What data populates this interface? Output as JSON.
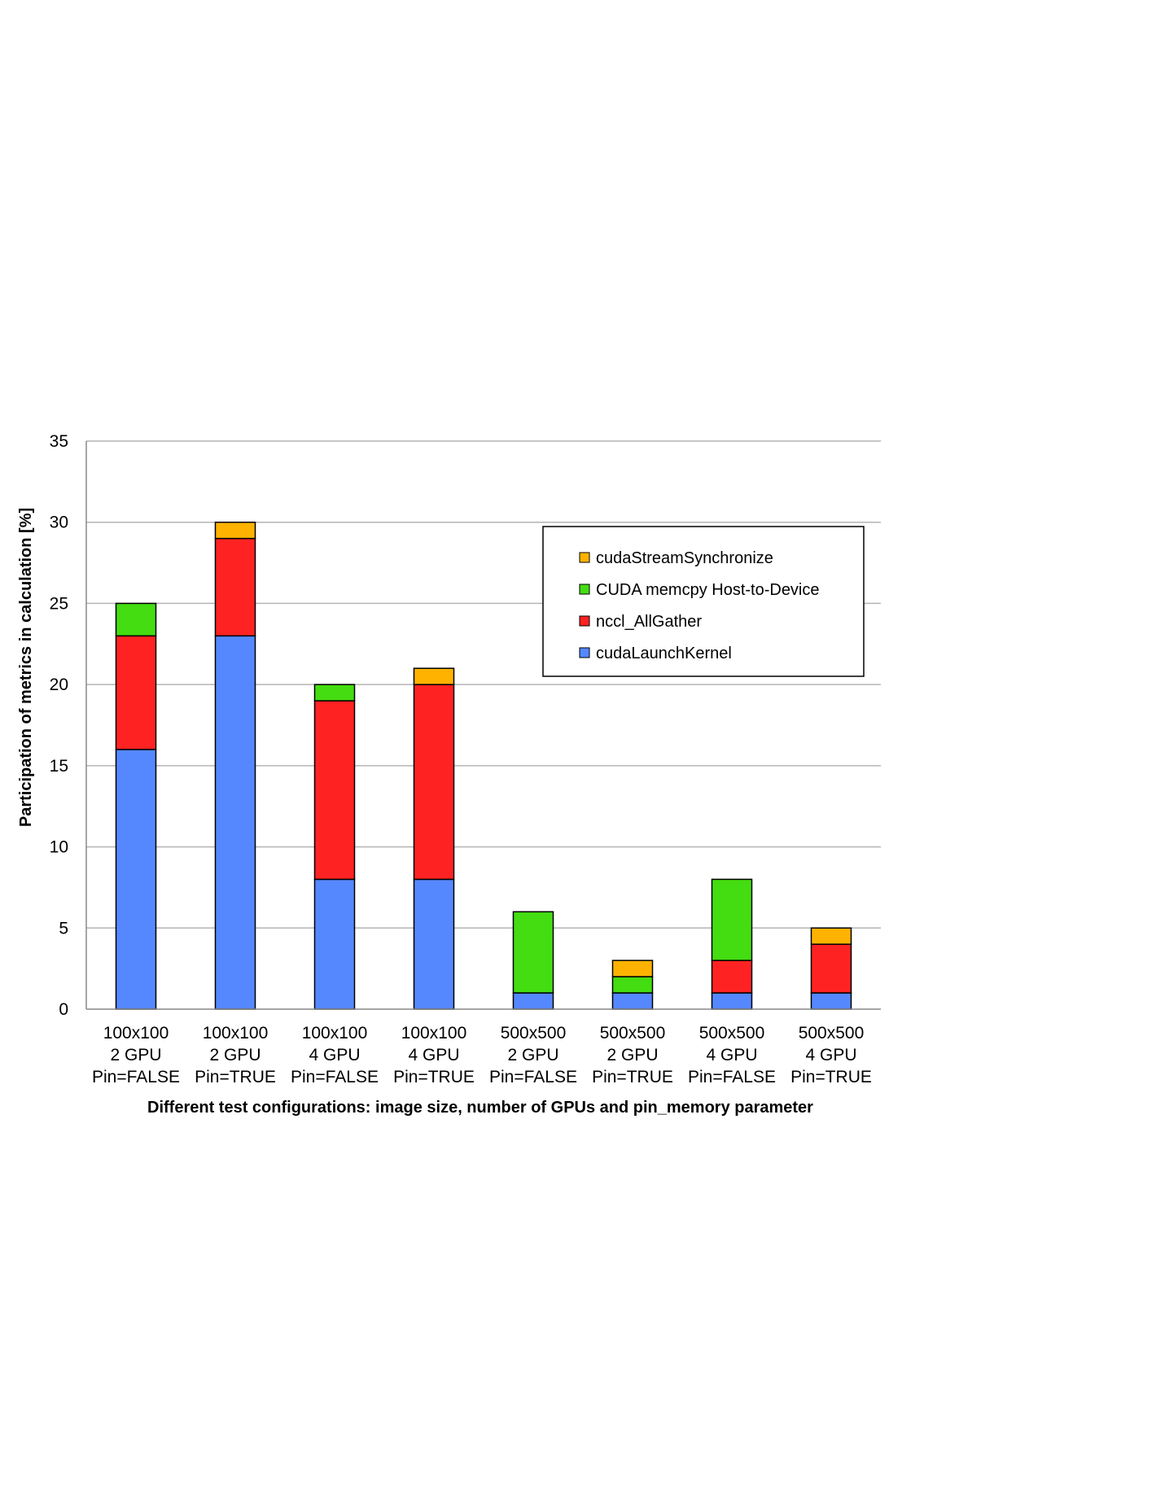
{
  "chart_data": {
    "type": "bar",
    "stacked": true,
    "title": "",
    "xlabel": "Different test configurations: image size, number of GPUs and pin_memory parameter",
    "ylabel": "Participation of metrics in calculation [%]",
    "ylim": [
      0,
      35
    ],
    "yticks": [
      0,
      5,
      10,
      15,
      20,
      25,
      30,
      35
    ],
    "grid": true,
    "legend_position": "top-right",
    "categories": [
      [
        "100x100",
        "2 GPU",
        "Pin=FALSE"
      ],
      [
        "100x100",
        "2 GPU",
        "Pin=TRUE"
      ],
      [
        "100x100",
        "4 GPU",
        "Pin=FALSE"
      ],
      [
        "100x100",
        "4 GPU",
        "Pin=TRUE"
      ],
      [
        "500x500",
        "2 GPU",
        "Pin=FALSE"
      ],
      [
        "500x500",
        "2 GPU",
        "Pin=TRUE"
      ],
      [
        "500x500",
        "4 GPU",
        "Pin=FALSE"
      ],
      [
        "500x500",
        "4 GPU",
        "Pin=TRUE"
      ]
    ],
    "series": [
      {
        "name": "cudaLaunchKernel",
        "color": "#5588ff",
        "values": [
          16,
          23,
          8,
          8,
          1,
          1,
          1,
          1
        ]
      },
      {
        "name": "nccl_AllGather",
        "color": "#ff2222",
        "values": [
          7,
          6,
          11,
          12,
          0,
          0,
          2,
          3
        ]
      },
      {
        "name": "CUDA memcpy Host-to-Device",
        "color": "#44dd11",
        "values": [
          2,
          0,
          1,
          0,
          5,
          1,
          5,
          0
        ]
      },
      {
        "name": "cudaStreamSynchronize",
        "color": "#ffb300",
        "values": [
          0,
          1,
          0,
          1,
          0,
          1,
          0,
          1
        ]
      }
    ],
    "legend_order": [
      "cudaStreamSynchronize",
      "CUDA memcpy Host-to-Device",
      "nccl_AllGather",
      "cudaLaunchKernel"
    ]
  }
}
